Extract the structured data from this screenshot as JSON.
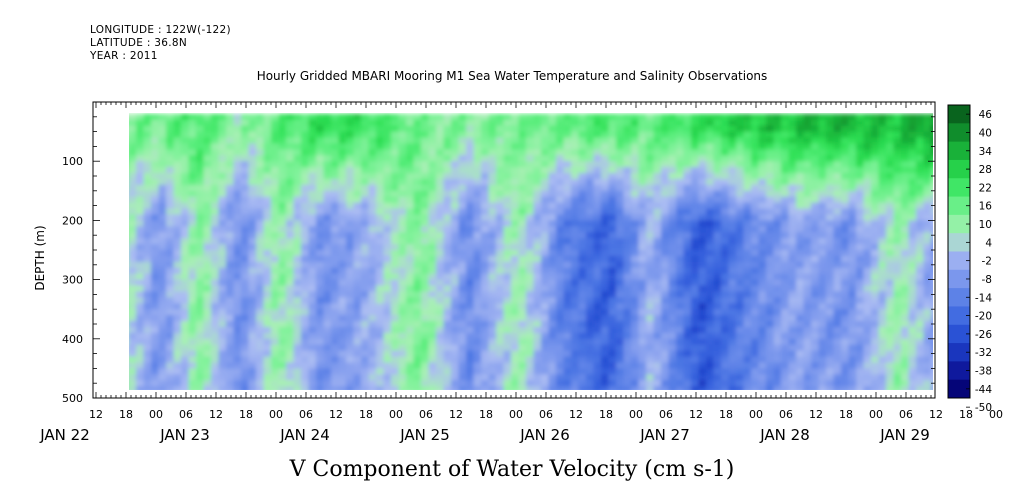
{
  "header": {
    "longitude": "LONGITUDE : 122W(-122)",
    "latitude": "LATITUDE : 36.8N",
    "year": "YEAR : 2011",
    "title": "Hourly Gridded MBARI Mooring M1 Sea Water Temperature and Salinity Observations"
  },
  "chart_data": {
    "type": "heatmap",
    "title": "Hourly Gridded MBARI Mooring M1 Sea Water Temperature and Salinity Observations",
    "xlabel": "V Component of Water Velocity (cm s-1)",
    "ylabel": "DEPTH (m)",
    "ylim": [
      500,
      0
    ],
    "y_ticks": [
      100,
      200,
      300,
      400,
      500
    ],
    "x_hour_ticks": [
      "12",
      "18",
      "00",
      "06",
      "12",
      "18",
      "00",
      "06",
      "12",
      "18",
      "00",
      "06",
      "12",
      "18",
      "00",
      "06",
      "12",
      "18",
      "00",
      "06",
      "12",
      "18",
      "00",
      "06",
      "12",
      "18",
      "00",
      "06",
      "12",
      "18",
      "00",
      "06"
    ],
    "x_day_labels": [
      "JAN 22",
      "JAN 23",
      "JAN 24",
      "JAN 25",
      "JAN 26",
      "JAN 27",
      "JAN 28",
      "JAN 29"
    ],
    "data_depth_range": [
      20,
      490
    ],
    "colorbar": {
      "levels": [
        46,
        40,
        34,
        28,
        22,
        16,
        10,
        4,
        -2,
        -8,
        -14,
        -20,
        -26,
        -32,
        -38,
        -44,
        -50
      ],
      "min": -50,
      "max": 46
    },
    "profiles_note": "Surface layer (about 20-100 m) positive northward velocity (green), deeper layers mostly negative (blue) with alternating vertical bands",
    "band_pattern": [
      {
        "time_hours_from_jan22_00": 17,
        "surface": 10,
        "deep": 4
      },
      {
        "time_hours_from_jan22_00": 24,
        "surface": 12,
        "deep": -12
      },
      {
        "time_hours_from_jan22_00": 32,
        "surface": 18,
        "deep": 8
      },
      {
        "time_hours_from_jan22_00": 40,
        "surface": 6,
        "deep": -14
      },
      {
        "time_hours_from_jan22_00": 48,
        "surface": 14,
        "deep": 8
      },
      {
        "time_hours_from_jan22_00": 56,
        "surface": 22,
        "deep": -12
      },
      {
        "time_hours_from_jan22_00": 66,
        "surface": 20,
        "deep": -6
      },
      {
        "time_hours_from_jan22_00": 76,
        "surface": 12,
        "deep": 10
      },
      {
        "time_hours_from_jan22_00": 86,
        "surface": 8,
        "deep": -14
      },
      {
        "time_hours_from_jan22_00": 96,
        "surface": 12,
        "deep": 6
      },
      {
        "time_hours_from_jan22_00": 104,
        "surface": 14,
        "deep": -16
      },
      {
        "time_hours_from_jan22_00": 114,
        "surface": 18,
        "deep": -26
      },
      {
        "time_hours_from_jan22_00": 122,
        "surface": 14,
        "deep": -4
      },
      {
        "time_hours_from_jan22_00": 132,
        "surface": 22,
        "deep": -28
      },
      {
        "time_hours_from_jan22_00": 142,
        "surface": 26,
        "deep": -16
      },
      {
        "time_hours_from_jan22_00": 152,
        "surface": 28,
        "deep": -8
      },
      {
        "time_hours_from_jan22_00": 162,
        "surface": 30,
        "deep": -12
      },
      {
        "time_hours_from_jan22_00": 172,
        "surface": 28,
        "deep": 6
      },
      {
        "time_hours_from_jan22_00": 180,
        "surface": 38,
        "deep": -10
      },
      {
        "time_hours_from_jan22_00": 188,
        "surface": 24,
        "deep": 10
      },
      {
        "time_hours_from_jan22_00": 196,
        "surface": 18,
        "deep": -14
      }
    ]
  }
}
